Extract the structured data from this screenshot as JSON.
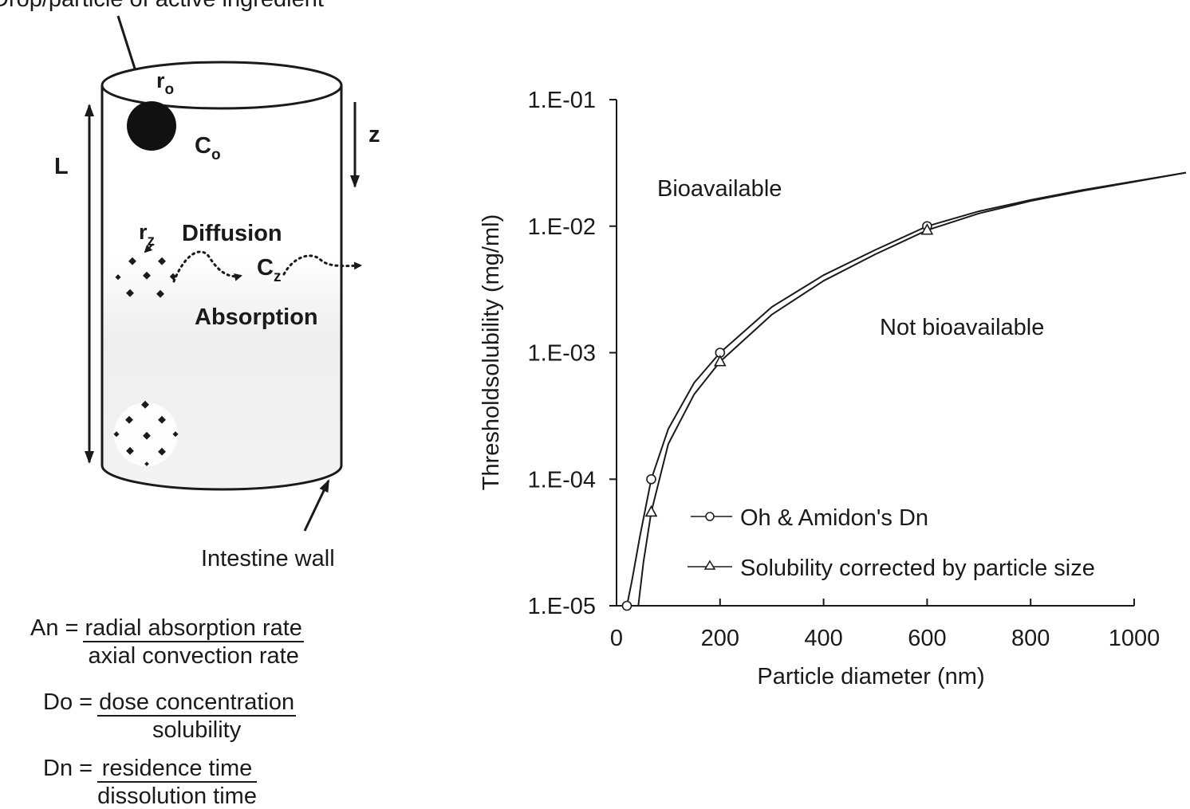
{
  "diagram": {
    "top_label": "Drop/particle of active ingredient",
    "r_o": "r",
    "r_o_sub": "o",
    "c_o": "C",
    "c_o_sub": "o",
    "z": "z",
    "L": "L",
    "r_z": "r",
    "r_z_sub": "z",
    "diffusion": "Diffusion",
    "c_z": "C",
    "c_z_sub": "z",
    "absorption": "Absorption",
    "intestine_wall": "Intestine wall"
  },
  "formulas": [
    {
      "lhs": "An =",
      "numerator": "radial absorption rate",
      "denominator": "axial convection rate"
    },
    {
      "lhs": "Do =",
      "numerator": "dose concentration",
      "denominator": "solubility"
    },
    {
      "lhs": "Dn =",
      "numerator": "residence time",
      "denominator": "dissolution time"
    }
  ],
  "chart_data": {
    "type": "line",
    "xlabel": "Particle diameter (nm)",
    "ylabel": "Thresholdsolubility (mg/ml)",
    "xlim": [
      0,
      1000
    ],
    "ylim": [
      1e-05,
      0.1
    ],
    "yscale": "log",
    "x_ticks": [
      0,
      200,
      400,
      600,
      800,
      1000
    ],
    "y_ticks": [
      1e-05,
      0.0001,
      0.001,
      0.01,
      0.1
    ],
    "y_tick_labels": [
      "1.E-05",
      "1.E-04",
      "1.E-03",
      "1.E-02",
      "1.E-01"
    ],
    "grid": false,
    "legend_position": "lower-right",
    "annotations": [
      "Bioavailable",
      "Not bioavailable"
    ],
    "series": [
      {
        "name": "Oh & Amidon's Dn",
        "marker": "circle",
        "markers_x": [
          20,
          67,
          200,
          600
        ],
        "markers_y": [
          1e-05,
          0.0001,
          0.001,
          0.01
        ],
        "x": [
          20,
          30,
          45,
          67,
          100,
          150,
          200,
          300,
          400,
          500,
          600,
          700,
          800,
          900,
          1000,
          1100
        ],
        "y": [
          1e-05,
          1.6e-05,
          3.5e-05,
          0.0001,
          0.00025,
          0.00058,
          0.001,
          0.0023,
          0.0041,
          0.0065,
          0.01,
          0.0131,
          0.0161,
          0.0193,
          0.0226,
          0.0265
        ]
      },
      {
        "name": "Solubility corrected by particle size",
        "marker": "triangle",
        "markers_x": [
          67,
          200,
          600
        ],
        "markers_y": [
          5.5e-05,
          0.00085,
          0.0093
        ],
        "x": [
          42,
          52,
          67,
          100,
          150,
          200,
          300,
          400,
          500,
          600,
          700,
          800,
          900,
          1000,
          1100
        ],
        "y": [
          1e-05,
          2.2e-05,
          5.5e-05,
          0.00019,
          0.00047,
          0.00085,
          0.002,
          0.0037,
          0.006,
          0.0093,
          0.0126,
          0.0158,
          0.019,
          0.0224,
          0.0265
        ]
      }
    ]
  }
}
